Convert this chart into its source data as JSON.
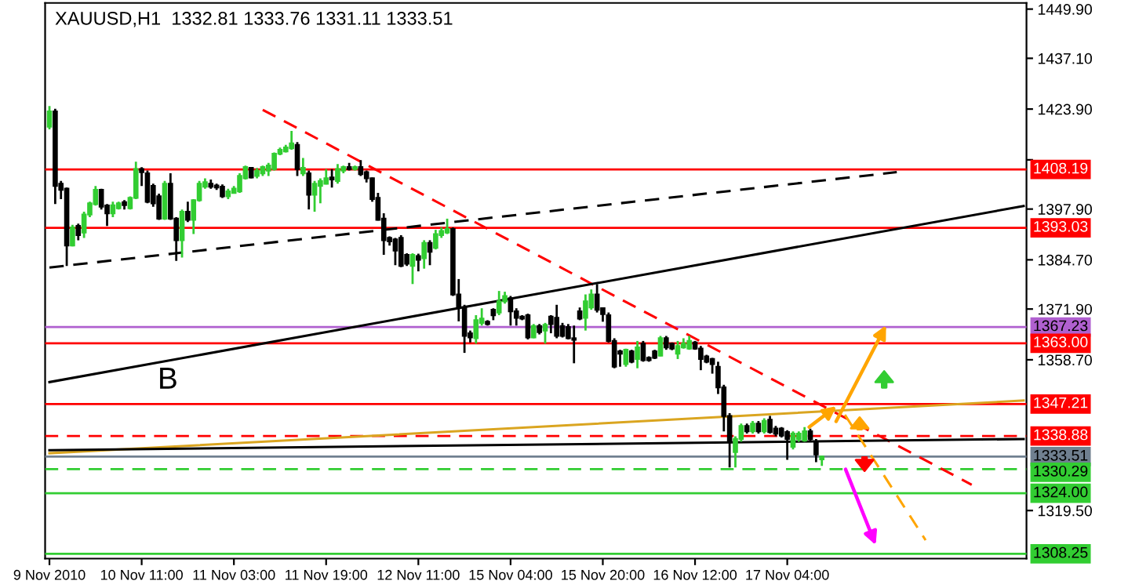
{
  "chart_data": {
    "type": "candlestick",
    "title": "XAUUSD,H1  1332.81 1333.76 1331.11 1333.51",
    "categories": [
      "9 Nov 2010",
      null,
      null,
      null,
      null,
      null,
      null,
      null,
      null,
      null,
      null,
      null,
      null,
      null,
      null,
      null,
      "10 Nov 11:00",
      null,
      null,
      null,
      null,
      null,
      null,
      null,
      null,
      null,
      null,
      null,
      null,
      null,
      null,
      null,
      "11 Nov 03:00",
      null,
      null,
      null,
      null,
      null,
      null,
      null,
      null,
      null,
      null,
      null,
      null,
      null,
      null,
      null,
      "11 Nov 19:00",
      null,
      null,
      null,
      null,
      null,
      null,
      null,
      null,
      null,
      null,
      null,
      null,
      null,
      null,
      null,
      "12 Nov 11:00",
      null,
      null,
      null,
      null,
      null,
      null,
      null,
      null,
      null,
      null,
      null,
      null,
      null,
      null,
      null,
      "15 Nov 04:00",
      null,
      null,
      null,
      null,
      null,
      null,
      null,
      null,
      null,
      null,
      null,
      null,
      null,
      null,
      null,
      "15 Nov 20:00",
      null,
      null,
      null,
      null,
      null,
      null,
      null,
      null,
      null,
      null,
      null,
      null,
      null,
      null,
      null,
      "16 Nov 12:00",
      null,
      null,
      null,
      null,
      null,
      null,
      null,
      null,
      null,
      null,
      null,
      null,
      null,
      null,
      null,
      "17 Nov 04:00",
      null,
      null,
      null,
      null,
      null,
      null,
      null,
      null,
      null,
      null,
      null,
      null,
      null,
      null,
      null,
      null,
      null,
      null,
      null,
      null,
      null,
      null,
      null,
      null,
      null,
      null,
      null,
      null,
      null,
      null,
      null,
      null,
      null,
      null,
      null,
      null,
      null,
      null,
      null,
      null,
      null
    ],
    "ohlc": [
      [
        1419.3,
        1424.7,
        1418.6,
        1423.3
      ],
      [
        1423.3,
        1424.0,
        1399.2,
        1403.9
      ],
      [
        1404.5,
        1405.2,
        1400.5,
        1402.9
      ],
      [
        1403.2,
        1403.5,
        1383.1,
        1388.4
      ],
      [
        1388.4,
        1393.8,
        1388.2,
        1393.1
      ],
      [
        1393.5,
        1394.1,
        1389.8,
        1391.1
      ],
      [
        1391.8,
        1397.2,
        1390.4,
        1396.5
      ],
      [
        1396.5,
        1399.8,
        1395.8,
        1399.4
      ],
      [
        1399.2,
        1403.9,
        1398.8,
        1402.9
      ],
      [
        1402.9,
        1403.2,
        1397.8,
        1398.5
      ],
      [
        1398.8,
        1399.2,
        1393.5,
        1396.8
      ],
      [
        1396.8,
        1399.8,
        1395.8,
        1398.9
      ],
      [
        1398.1,
        1399.8,
        1397.8,
        1399.4
      ],
      [
        1399.7,
        1400.2,
        1397.8,
        1398.9
      ],
      [
        1398.1,
        1401.2,
        1397.8,
        1400.8
      ],
      [
        1400.8,
        1410.2,
        1400.5,
        1408.3
      ],
      [
        1408.3,
        1408.8,
        1403.9,
        1407.5
      ],
      [
        1407.2,
        1407.9,
        1399.4,
        1399.8
      ],
      [
        1403.9,
        1404.5,
        1398.5,
        1399.4
      ],
      [
        1401.2,
        1401.9,
        1395.1,
        1395.4
      ],
      [
        1395.4,
        1405.2,
        1395.1,
        1404.5
      ],
      [
        1404.5,
        1407.2,
        1395.1,
        1395.4
      ],
      [
        1395.4,
        1395.8,
        1384.4,
        1389.8
      ],
      [
        1389.8,
        1397.8,
        1385.3,
        1397.2
      ],
      [
        1397.2,
        1399.8,
        1394.5,
        1395.1
      ],
      [
        1395.1,
        1400.5,
        1391.4,
        1400.2
      ],
      [
        1400.2,
        1405.2,
        1399.8,
        1404.5
      ],
      [
        1403.7,
        1405.9,
        1403.2,
        1404.9
      ],
      [
        1404.5,
        1405.6,
        1403.2,
        1403.7
      ],
      [
        1404.0,
        1404.5,
        1402.9,
        1403.5
      ],
      [
        1403.7,
        1404.3,
        1400.8,
        1401.2
      ],
      [
        1401.2,
        1403.2,
        1400.5,
        1402.5
      ],
      [
        1402.1,
        1403.9,
        1401.9,
        1403.2
      ],
      [
        1402.5,
        1407.2,
        1402.1,
        1406.5
      ],
      [
        1405.9,
        1409.2,
        1405.6,
        1408.8
      ],
      [
        1408.6,
        1408.8,
        1405.9,
        1406.1
      ],
      [
        1406.5,
        1408.6,
        1405.9,
        1407.9
      ],
      [
        1407.2,
        1409.2,
        1406.5,
        1408.8
      ],
      [
        1407.9,
        1409.9,
        1406.5,
        1409.2
      ],
      [
        1408.3,
        1412.6,
        1407.9,
        1412.3
      ],
      [
        1412.3,
        1413.9,
        1411.9,
        1413.3
      ],
      [
        1412.9,
        1414.6,
        1412.6,
        1413.9
      ],
      [
        1413.7,
        1418.2,
        1413.3,
        1415.0
      ],
      [
        1414.6,
        1415.3,
        1406.5,
        1408.3
      ],
      [
        1407.2,
        1411.2,
        1406.5,
        1408.6
      ],
      [
        1407.2,
        1407.9,
        1397.8,
        1401.6
      ],
      [
        1401.6,
        1405.2,
        1397.2,
        1404.5
      ],
      [
        1403.9,
        1405.9,
        1399.4,
        1405.2
      ],
      [
        1404.5,
        1408.3,
        1404.3,
        1405.9
      ],
      [
        1406.1,
        1408.3,
        1403.5,
        1405.6
      ],
      [
        1405.2,
        1409.6,
        1404.5,
        1408.3
      ],
      [
        1407.9,
        1409.2,
        1407.2,
        1408.8
      ],
      [
        1408.8,
        1409.9,
        1407.9,
        1408.3
      ],
      [
        1408.3,
        1409.2,
        1407.9,
        1408.8
      ],
      [
        1408.8,
        1410.6,
        1406.5,
        1407.0
      ],
      [
        1407.5,
        1407.9,
        1404.8,
        1405.9
      ],
      [
        1405.9,
        1406.1,
        1399.8,
        1400.5
      ],
      [
        1400.8,
        1402.1,
        1394.9,
        1395.1
      ],
      [
        1395.4,
        1396.8,
        1386.0,
        1389.8
      ],
      [
        1390.4,
        1390.8,
        1388.4,
        1389.5
      ],
      [
        1390.0,
        1390.4,
        1383.3,
        1387.1
      ],
      [
        1390.4,
        1391.1,
        1382.8,
        1383.1
      ],
      [
        1386.0,
        1386.4,
        1383.1,
        1383.7
      ],
      [
        1383.1,
        1386.4,
        1378.4,
        1386.0
      ],
      [
        1385.7,
        1386.3,
        1381.7,
        1384.7
      ],
      [
        1385.1,
        1389.8,
        1382.4,
        1389.1
      ],
      [
        1389.1,
        1389.8,
        1383.3,
        1386.8
      ],
      [
        1387.8,
        1392.5,
        1387.4,
        1391.4
      ],
      [
        1391.1,
        1393.1,
        1390.4,
        1392.2
      ],
      [
        1391.8,
        1395.4,
        1391.4,
        1392.7
      ],
      [
        1392.7,
        1393.1,
        1375.3,
        1375.7
      ],
      [
        1375.7,
        1379.7,
        1368.7,
        1372.3
      ],
      [
        1372.3,
        1373.0,
        1360.5,
        1364.9
      ],
      [
        1365.6,
        1366.3,
        1363.2,
        1364.5
      ],
      [
        1364.3,
        1370.3,
        1362.9,
        1369.0
      ],
      [
        1368.3,
        1372.1,
        1367.6,
        1369.4
      ],
      [
        1368.6,
        1369.0,
        1367.6,
        1368.0
      ],
      [
        1371.7,
        1372.1,
        1369.0,
        1370.3
      ],
      [
        1371.0,
        1376.6,
        1370.3,
        1373.9
      ],
      [
        1373.9,
        1376.4,
        1373.3,
        1375.3
      ],
      [
        1374.7,
        1375.3,
        1367.6,
        1371.3
      ],
      [
        1371.3,
        1372.1,
        1367.6,
        1369.6
      ],
      [
        1369.9,
        1370.3,
        1369.0,
        1369.4
      ],
      [
        1370.3,
        1370.7,
        1364.0,
        1364.5
      ],
      [
        1364.5,
        1368.0,
        1364.3,
        1367.5
      ],
      [
        1367.5,
        1368.0,
        1365.3,
        1365.9
      ],
      [
        1366.3,
        1368.3,
        1362.9,
        1367.8
      ],
      [
        1369.9,
        1370.3,
        1365.6,
        1368.0
      ],
      [
        1369.6,
        1373.0,
        1364.3,
        1364.9
      ],
      [
        1367.5,
        1368.3,
        1364.5,
        1364.9
      ],
      [
        1367.2,
        1368.0,
        1364.0,
        1364.3
      ],
      [
        1364.3,
        1367.6,
        1357.8,
        1363.9
      ],
      [
        1371.3,
        1372.3,
        1369.0,
        1369.4
      ],
      [
        1369.6,
        1375.7,
        1366.3,
        1373.9
      ],
      [
        1372.3,
        1377.0,
        1371.7,
        1375.7
      ],
      [
        1375.7,
        1378.4,
        1371.0,
        1371.7
      ],
      [
        1372.1,
        1372.3,
        1368.6,
        1370.6
      ],
      [
        1370.3,
        1371.0,
        1363.2,
        1363.6
      ],
      [
        1363.6,
        1364.3,
        1356.5,
        1356.9
      ],
      [
        1360.9,
        1361.3,
        1356.9,
        1360.3
      ],
      [
        1357.6,
        1361.6,
        1356.9,
        1361.3
      ],
      [
        1360.9,
        1361.3,
        1357.8,
        1358.2
      ],
      [
        1358.9,
        1363.6,
        1356.5,
        1361.9
      ],
      [
        1362.9,
        1363.6,
        1358.2,
        1358.6
      ],
      [
        1359.2,
        1359.6,
        1358.2,
        1358.6
      ],
      [
        1360.9,
        1361.3,
        1358.9,
        1359.2
      ],
      [
        1359.8,
        1364.9,
        1359.6,
        1364.3
      ],
      [
        1364.3,
        1364.9,
        1361.3,
        1361.9
      ],
      [
        1362.9,
        1363.2,
        1361.2,
        1361.6
      ],
      [
        1360.3,
        1363.6,
        1358.9,
        1362.3
      ],
      [
        1361.9,
        1364.3,
        1361.6,
        1362.9
      ],
      [
        1361.6,
        1364.9,
        1361.3,
        1363.6
      ],
      [
        1363.2,
        1363.6,
        1361.3,
        1361.6
      ],
      [
        1361.6,
        1362.3,
        1356.0,
        1358.9
      ],
      [
        1359.6,
        1360.0,
        1357.8,
        1358.2
      ],
      [
        1358.9,
        1359.2,
        1355.1,
        1357.6
      ],
      [
        1356.9,
        1358.2,
        1349.8,
        1351.5
      ],
      [
        1351.5,
        1352.2,
        1340.1,
        1344.1
      ],
      [
        1344.1,
        1344.8,
        1330.7,
        1337.4
      ],
      [
        1334.7,
        1338.8,
        1330.7,
        1338.1
      ],
      [
        1338.1,
        1342.1,
        1337.4,
        1341.5
      ],
      [
        1341.5,
        1342.1,
        1339.5,
        1340.1
      ],
      [
        1340.1,
        1342.8,
        1339.5,
        1342.1
      ],
      [
        1342.1,
        1342.8,
        1339.5,
        1340.1
      ],
      [
        1340.1,
        1343.5,
        1339.5,
        1342.8
      ],
      [
        1343.1,
        1344.1,
        1339.5,
        1339.9
      ],
      [
        1340.8,
        1341.5,
        1338.8,
        1339.5
      ],
      [
        1340.8,
        1341.2,
        1338.5,
        1339.0
      ],
      [
        1339.9,
        1340.4,
        1332.7,
        1338.1
      ],
      [
        1336.1,
        1340.1,
        1335.4,
        1339.5
      ],
      [
        1338.1,
        1340.1,
        1337.4,
        1339.5
      ],
      [
        1337.7,
        1341.2,
        1337.4,
        1340.1
      ],
      [
        1340.1,
        1340.8,
        1337.7,
        1338.1
      ],
      [
        1337.4,
        1338.1,
        1332.1,
        1334.1
      ],
      [
        1332.81,
        1333.76,
        1331.11,
        1333.51
      ],
      null,
      null,
      null,
      null,
      null,
      null,
      null,
      null,
      null,
      null,
      null,
      null,
      null,
      null,
      null,
      null,
      null,
      null,
      null,
      null,
      null,
      null,
      null,
      null,
      null,
      null,
      null,
      null,
      null,
      null,
      null,
      null,
      null,
      null,
      null
    ],
    "colors": [
      "#32cd32",
      "#000000",
      "#000000",
      "#000000",
      "#32cd32",
      "#000000",
      "#32cd32",
      "#32cd32",
      "#32cd32",
      "#000000",
      "#000000",
      "#32cd32",
      "#32cd32",
      "#000000",
      "#32cd32",
      "#32cd32",
      "#000000",
      "#000000",
      "#000000",
      "#000000",
      "#32cd32",
      "#000000",
      "#000000",
      "#32cd32",
      "#000000",
      "#32cd32",
      "#32cd32",
      "#32cd32",
      "#000000",
      "#000000",
      "#000000",
      "#32cd32",
      "#32cd32",
      "#32cd32",
      "#32cd32",
      "#000000",
      "#32cd32",
      "#32cd32",
      "#32cd32",
      "#32cd32",
      "#32cd32",
      "#32cd32",
      "#32cd32",
      "#000000",
      "#32cd32",
      "#000000",
      "#32cd32",
      "#32cd32",
      "#32cd32",
      "#000000",
      "#32cd32",
      "#32cd32",
      "#000000",
      "#32cd32",
      "#000000",
      "#000000",
      "#000000",
      "#000000",
      "#000000",
      "#000000",
      "#000000",
      "#000000",
      "#000000",
      "#32cd32",
      "#000000",
      "#32cd32",
      "#000000",
      "#32cd32",
      "#32cd32",
      "#32cd32",
      "#000000",
      "#000000",
      "#000000",
      "#000000",
      "#32cd32",
      "#32cd32",
      "#000000",
      "#000000",
      "#32cd32",
      "#32cd32",
      "#000000",
      "#000000",
      "#000000",
      "#000000",
      "#32cd32",
      "#000000",
      "#32cd32",
      "#000000",
      "#000000",
      "#000000",
      "#000000",
      "#000000",
      "#000000",
      "#32cd32",
      "#32cd32",
      "#000000",
      "#000000",
      "#000000",
      "#000000",
      "#000000",
      "#32cd32",
      "#000000",
      "#32cd32",
      "#000000",
      "#000000",
      "#000000",
      "#32cd32",
      "#000000",
      "#000000",
      "#32cd32",
      "#32cd32",
      "#32cd32",
      "#000000",
      "#000000",
      "#000000",
      "#000000",
      "#000000",
      "#000000",
      "#000000",
      "#32cd32",
      "#32cd32",
      "#000000",
      "#32cd32",
      "#000000",
      "#32cd32",
      "#000000",
      "#000000",
      "#000000",
      "#000000",
      "#32cd32",
      "#32cd32",
      "#32cd32",
      "#000000",
      "#000000",
      "#32cd32",
      null,
      null,
      null,
      null,
      null,
      null,
      null,
      null,
      null,
      null,
      null,
      null,
      null,
      null,
      null,
      null,
      null,
      null,
      null,
      null,
      null,
      null,
      null,
      null,
      null,
      null,
      null,
      null,
      null,
      null,
      null,
      null,
      null,
      null,
      null
    ],
    "ylim": [
      1307.0,
      1451.5
    ],
    "yticks": [
      {
        "value": 1449.9,
        "label": "1449.90"
      },
      {
        "value": 1437.1,
        "label": "1437.10"
      },
      {
        "value": 1423.9,
        "label": "1423.90"
      },
      {
        "value": 1410.7,
        "label": null
      },
      {
        "value": 1397.9,
        "label": "1397.90"
      },
      {
        "value": 1384.7,
        "label": "1384.70"
      },
      {
        "value": 1371.9,
        "label": "1371.90"
      },
      {
        "value": 1358.7,
        "label": "1358.70"
      },
      {
        "value": 1319.5,
        "label": "1319.50"
      }
    ],
    "series": [
      {
        "type": "line",
        "color": "#ff0000",
        "line_style": "dashed",
        "values": [
          null,
          null,
          null,
          null,
          null,
          null,
          null,
          null,
          null,
          null,
          null,
          null,
          null,
          null,
          null,
          null,
          null,
          null,
          null,
          null,
          null,
          null,
          null,
          null,
          null,
          null,
          null,
          null,
          null,
          null,
          null,
          null,
          null,
          null,
          null,
          null,
          null,
          1423.7,
          null,
          null,
          null,
          null,
          null,
          null,
          null,
          null,
          null,
          null,
          null,
          null,
          null,
          null,
          null,
          null,
          null,
          null,
          null,
          null,
          null,
          null,
          null,
          null,
          null,
          null,
          null,
          null,
          null,
          null,
          null,
          null,
          null,
          null,
          null,
          null,
          null,
          null,
          null,
          null,
          null,
          null,
          null,
          null,
          null,
          null,
          null,
          null,
          null,
          null,
          null,
          null,
          null,
          null,
          null,
          null,
          null,
          null,
          null,
          null,
          null,
          null,
          null,
          null,
          null,
          null,
          null,
          null,
          null,
          null,
          null,
          null,
          null,
          null,
          null,
          null,
          null,
          null,
          null,
          null,
          null,
          null,
          null,
          null,
          null,
          null,
          null,
          null,
          null,
          null,
          null,
          null,
          null,
          null,
          null,
          null,
          null,
          null,
          null,
          null,
          null,
          null,
          null,
          null,
          null,
          null,
          null,
          null,
          null,
          null,
          null,
          null,
          null,
          null,
          null,
          null,
          null,
          null,
          null,
          null,
          null,
          null,
          1326.2,
          null,
          null,
          null,
          null,
          null,
          null,
          null,
          null,
          null
        ]
      },
      {
        "type": "line",
        "color": "#000000",
        "line_style": "dashed",
        "values": [
          1382.7,
          null,
          null,
          null,
          null,
          null,
          null,
          null,
          null,
          null,
          null,
          null,
          null,
          null,
          null,
          null,
          null,
          null,
          null,
          null,
          null,
          null,
          null,
          null,
          null,
          null,
          null,
          null,
          null,
          null,
          null,
          null,
          null,
          null,
          null,
          null,
          null,
          null,
          null,
          null,
          null,
          null,
          null,
          null,
          null,
          null,
          null,
          null,
          null,
          null,
          null,
          null,
          null,
          null,
          null,
          null,
          null,
          null,
          null,
          null,
          null,
          null,
          null,
          null,
          null,
          null,
          null,
          null,
          null,
          null,
          null,
          null,
          null,
          null,
          null,
          null,
          null,
          null,
          null,
          null,
          null,
          null,
          null,
          null,
          null,
          null,
          null,
          null,
          null,
          null,
          null,
          null,
          null,
          null,
          null,
          null,
          null,
          null,
          null,
          null,
          null,
          null,
          null,
          null,
          null,
          null,
          null,
          null,
          null,
          null,
          null,
          null,
          null,
          null,
          null,
          null,
          null,
          null,
          null,
          null,
          null,
          null,
          null,
          null,
          null,
          null,
          null,
          null,
          null,
          null,
          null,
          null,
          null,
          null,
          null,
          null,
          null,
          null,
          null,
          null,
          null,
          null,
          null,
          null,
          null,
          null,
          null,
          1407.5,
          null,
          null,
          null,
          null,
          null,
          null,
          null,
          null,
          null,
          null,
          null,
          null,
          null,
          null,
          null,
          null,
          null,
          null,
          null,
          null,
          null,
          null
        ]
      },
      {
        "type": "line",
        "color": "#000000",
        "line_style": "solid",
        "values": [
          1352.9,
          null,
          null,
          null,
          null,
          null,
          null,
          null,
          null,
          null,
          null,
          null,
          null,
          null,
          null,
          null,
          null,
          null,
          null,
          null,
          null,
          null,
          null,
          null,
          null,
          null,
          null,
          null,
          null,
          null,
          null,
          null,
          null,
          null,
          null,
          null,
          null,
          null,
          null,
          null,
          null,
          null,
          null,
          null,
          null,
          null,
          null,
          null,
          null,
          null,
          null,
          null,
          null,
          null,
          null,
          null,
          null,
          null,
          null,
          null,
          null,
          null,
          null,
          null,
          null,
          null,
          null,
          null,
          null,
          null,
          null,
          null,
          null,
          null,
          null,
          null,
          null,
          null,
          null,
          null,
          null,
          null,
          null,
          null,
          null,
          null,
          null,
          null,
          null,
          null,
          null,
          null,
          null,
          null,
          null,
          null,
          null,
          null,
          null,
          null,
          null,
          null,
          null,
          null,
          null,
          null,
          null,
          null,
          null,
          null,
          null,
          null,
          null,
          null,
          null,
          null,
          null,
          null,
          null,
          null,
          null,
          null,
          null,
          null,
          null,
          null,
          null,
          null,
          null,
          null,
          null,
          null,
          null,
          null,
          null,
          null,
          null,
          null,
          null,
          null,
          null,
          null,
          null,
          null,
          null,
          null,
          null,
          null,
          null,
          null,
          null,
          null,
          null,
          null,
          null,
          null,
          null,
          null,
          null,
          null,
          null,
          null,
          null,
          null,
          null,
          null,
          null,
          null,
          null,
          1398.7
        ]
      },
      {
        "type": "line",
        "color": "#daa520",
        "line_style": "solid",
        "values": [
          1334.4,
          null,
          null,
          null,
          null,
          null,
          null,
          null,
          null,
          null,
          null,
          null,
          null,
          null,
          null,
          null,
          null,
          null,
          null,
          null,
          null,
          null,
          null,
          null,
          null,
          null,
          null,
          null,
          null,
          null,
          null,
          null,
          null,
          null,
          null,
          null,
          null,
          null,
          null,
          null,
          null,
          null,
          null,
          null,
          null,
          null,
          null,
          null,
          null,
          null,
          null,
          null,
          null,
          null,
          null,
          null,
          null,
          null,
          null,
          null,
          null,
          null,
          null,
          null,
          null,
          null,
          null,
          null,
          null,
          null,
          null,
          null,
          null,
          null,
          null,
          null,
          null,
          null,
          null,
          null,
          null,
          null,
          null,
          null,
          null,
          null,
          null,
          null,
          null,
          null,
          null,
          null,
          null,
          null,
          null,
          null,
          null,
          null,
          null,
          null,
          null,
          null,
          null,
          null,
          null,
          null,
          null,
          null,
          null,
          null,
          null,
          null,
          null,
          null,
          null,
          null,
          null,
          null,
          null,
          null,
          null,
          null,
          null,
          null,
          null,
          null,
          null,
          null,
          null,
          null,
          null,
          null,
          null,
          null,
          null,
          null,
          null,
          null,
          null,
          null,
          null,
          null,
          null,
          null,
          null,
          null,
          null,
          null,
          null,
          null,
          null,
          null,
          null,
          null,
          null,
          null,
          null,
          null,
          null,
          null,
          null,
          null,
          null,
          null,
          null,
          null,
          null,
          null,
          null,
          1348.1
        ]
      },
      {
        "type": "line",
        "color": "#000000",
        "line_style": "solid",
        "values": [
          1335.2,
          null,
          null,
          null,
          null,
          null,
          null,
          null,
          null,
          null,
          null,
          null,
          null,
          null,
          null,
          null,
          null,
          null,
          null,
          null,
          null,
          null,
          null,
          null,
          null,
          null,
          null,
          null,
          null,
          null,
          null,
          null,
          null,
          null,
          null,
          null,
          null,
          null,
          null,
          null,
          null,
          null,
          null,
          null,
          null,
          null,
          null,
          null,
          null,
          null,
          null,
          null,
          null,
          null,
          null,
          null,
          null,
          null,
          null,
          null,
          null,
          null,
          null,
          null,
          null,
          null,
          null,
          null,
          null,
          null,
          null,
          null,
          null,
          null,
          null,
          null,
          null,
          null,
          null,
          null,
          null,
          null,
          null,
          null,
          null,
          null,
          null,
          null,
          null,
          null,
          null,
          null,
          null,
          null,
          null,
          null,
          null,
          null,
          null,
          null,
          null,
          null,
          null,
          null,
          null,
          null,
          null,
          null,
          null,
          null,
          null,
          null,
          null,
          null,
          null,
          null,
          null,
          null,
          null,
          null,
          null,
          null,
          null,
          null,
          null,
          null,
          null,
          null,
          null,
          null,
          null,
          null,
          null,
          null,
          null,
          null,
          null,
          null,
          null,
          null,
          null,
          null,
          null,
          null,
          null,
          null,
          null,
          null,
          null,
          null,
          null,
          null,
          null,
          null,
          null,
          null,
          null,
          null,
          null,
          null,
          null,
          null,
          null,
          null,
          null,
          null,
          null,
          null,
          null,
          1338.1
        ]
      },
      {
        "type": "line",
        "color": "#ffa500",
        "line_style": "dashed",
        "values": [
          null,
          null,
          null,
          null,
          null,
          null,
          null,
          null,
          null,
          null,
          null,
          null,
          null,
          null,
          null,
          null,
          null,
          null,
          null,
          null,
          null,
          null,
          null,
          null,
          null,
          null,
          null,
          null,
          null,
          null,
          null,
          null,
          null,
          null,
          null,
          null,
          null,
          null,
          null,
          null,
          null,
          null,
          null,
          null,
          null,
          null,
          null,
          null,
          null,
          null,
          null,
          null,
          null,
          null,
          null,
          null,
          null,
          null,
          null,
          null,
          null,
          null,
          null,
          null,
          null,
          null,
          null,
          null,
          null,
          null,
          null,
          null,
          null,
          null,
          null,
          null,
          null,
          null,
          null,
          null,
          null,
          null,
          null,
          null,
          null,
          null,
          null,
          null,
          null,
          null,
          null,
          null,
          null,
          null,
          null,
          null,
          null,
          null,
          null,
          null,
          null,
          null,
          null,
          null,
          null,
          null,
          null,
          null,
          null,
          null,
          null,
          null,
          null,
          null,
          null,
          null,
          null,
          null,
          null,
          null,
          null,
          null,
          null,
          null,
          null,
          null,
          null,
          null,
          null,
          null,
          null,
          null,
          null,
          null,
          null,
          null,
          null,
          null,
          1344.4,
          null,
          null,
          null,
          null,
          null,
          null,
          null,
          null,
          null,
          null,
          null,
          null,
          null,
          1311.8,
          null,
          null,
          null,
          null,
          null,
          null,
          null,
          null,
          null,
          null,
          null,
          null,
          null,
          null,
          null,
          null,
          null
        ]
      }
    ],
    "ref_lines": [
      {
        "axis": "y",
        "value": 1408.19,
        "label": "1408.19",
        "color": "#ff0000",
        "line_style": "solid"
      },
      {
        "axis": "y",
        "value": 1393.03,
        "label": "1393.03",
        "color": "#ff0000",
        "line_style": "solid"
      },
      {
        "axis": "y",
        "value": 1367.23,
        "label": "1367.23",
        "color": "#b060d0",
        "line_style": "solid"
      },
      {
        "axis": "y",
        "value": 1363.0,
        "label": "1363.00",
        "color": "#ff0000",
        "line_style": "solid"
      },
      {
        "axis": "y",
        "value": 1347.21,
        "label": "1347.21",
        "color": "#ff0000",
        "line_style": "solid"
      },
      {
        "axis": "y",
        "value": 1338.88,
        "label": "1338.88",
        "color": "#ff0000",
        "line_style": "dashed"
      },
      {
        "axis": "y",
        "value": 1333.51,
        "label": "1333.51",
        "color": "#708090",
        "line_style": "solid"
      },
      {
        "axis": "y",
        "value": 1330.29,
        "label": "1330.29",
        "color": "#32cd32",
        "line_style": "dashed"
      },
      {
        "axis": "y",
        "value": 1324.0,
        "label": "1324.00",
        "color": "#32cd32",
        "line_style": "solid"
      },
      {
        "axis": "y",
        "value": 1308.25,
        "label": "1308.25",
        "color": "#32cd32",
        "line_style": "solid"
      }
    ],
    "annotations": [
      "B"
    ]
  }
}
